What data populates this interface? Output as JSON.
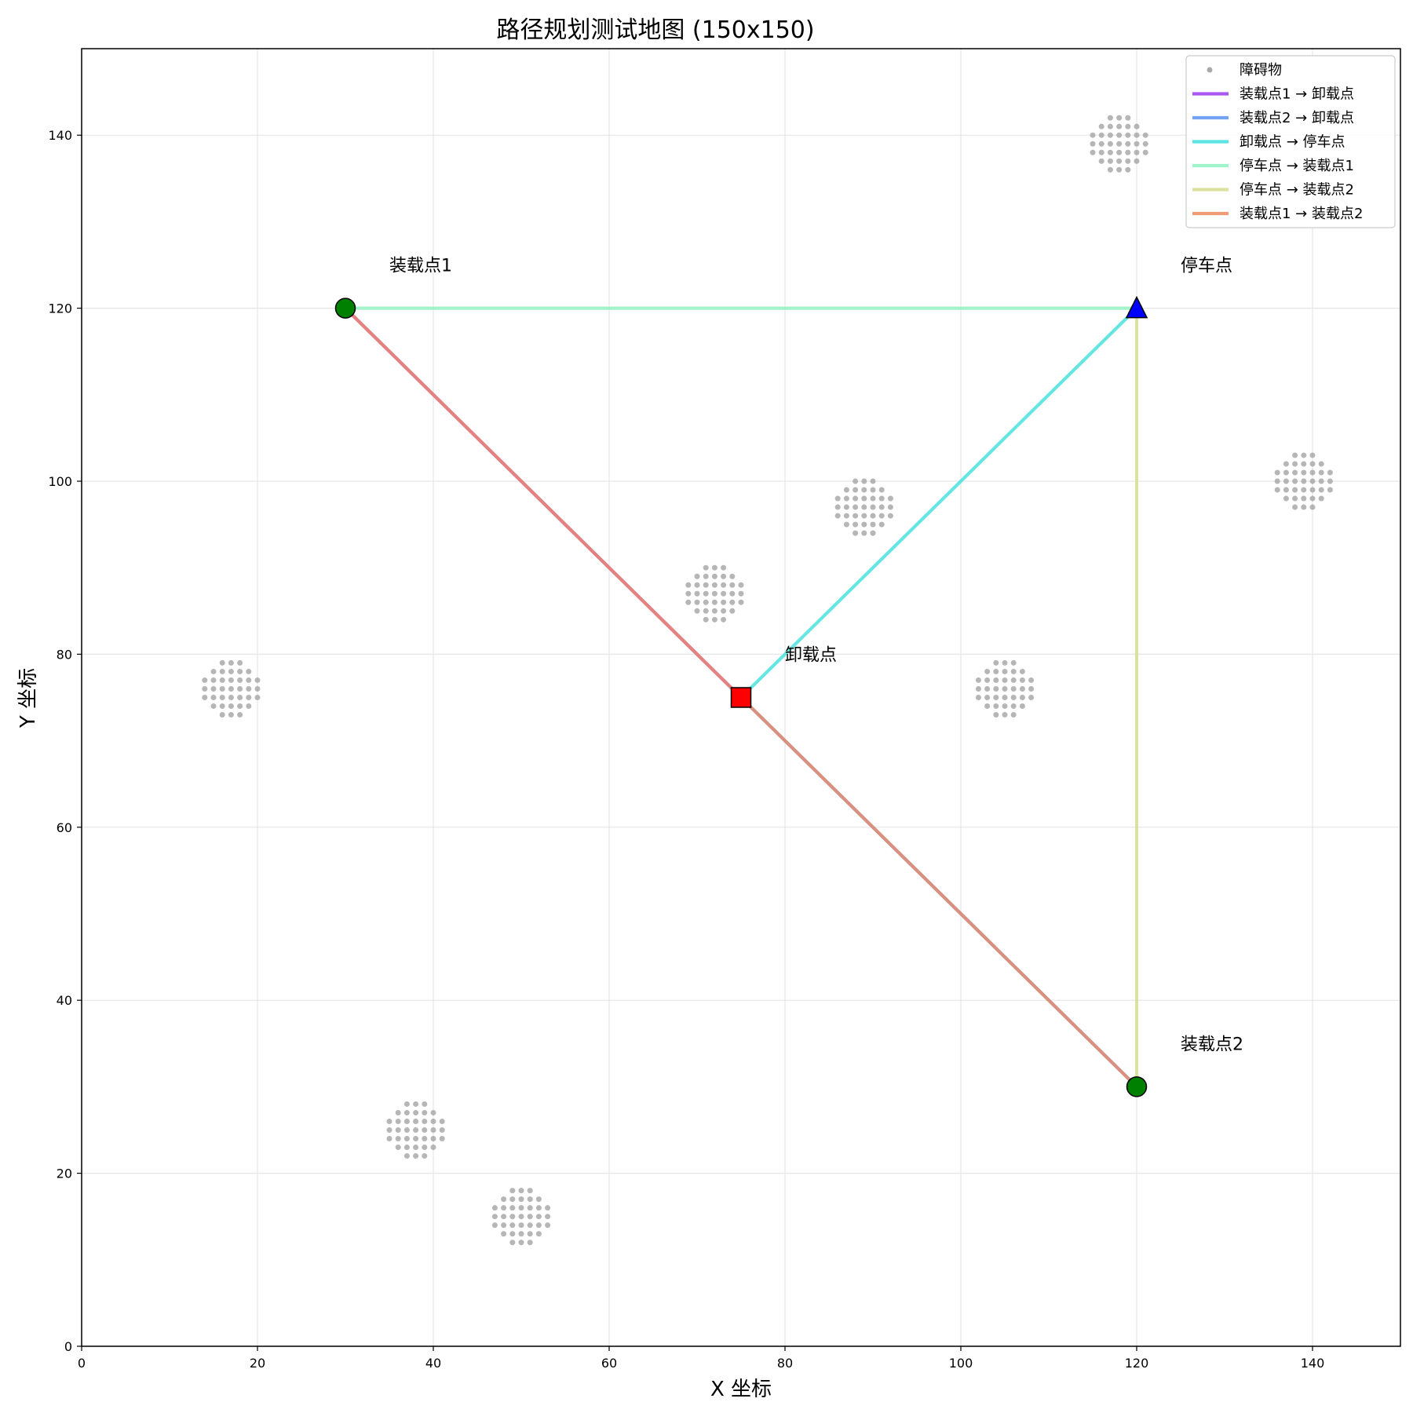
{
  "chart_data": {
    "type": "scatter",
    "title": "路径规划测试地图 (150x150)",
    "xlabel": "X 坐标",
    "ylabel": "Y 坐标",
    "xlim": [
      0,
      150
    ],
    "ylim": [
      0,
      150
    ],
    "xticks": [
      0,
      20,
      40,
      60,
      80,
      100,
      120,
      140
    ],
    "yticks": [
      0,
      20,
      40,
      60,
      80,
      100,
      120,
      140
    ],
    "grid": true,
    "legend_position": "top-right",
    "obstacles": {
      "name": "障碍物",
      "color": "#a9a9a9",
      "clusters": [
        [
          17,
          76
        ],
        [
          38,
          25
        ],
        [
          50,
          15
        ],
        [
          72,
          87
        ],
        [
          89,
          97
        ],
        [
          105,
          76
        ],
        [
          118,
          139
        ],
        [
          139,
          100
        ]
      ]
    },
    "points": [
      {
        "id": "load1",
        "label": "装载点1",
        "x": 30,
        "y": 120,
        "marker": "circle",
        "color": "#008000"
      },
      {
        "id": "load2",
        "label": "装载点2",
        "x": 120,
        "y": 30,
        "marker": "circle",
        "color": "#008000"
      },
      {
        "id": "unload",
        "label": "卸载点",
        "x": 75,
        "y": 75,
        "marker": "square",
        "color": "#ff0000"
      },
      {
        "id": "park",
        "label": "停车点",
        "x": 120,
        "y": 120,
        "marker": "triangle",
        "color": "#0000ff"
      }
    ],
    "paths": [
      {
        "name": "装载点1 → 卸载点",
        "color": "#9b3df0",
        "points": [
          [
            30,
            120
          ],
          [
            75,
            75
          ]
        ]
      },
      {
        "name": "装载点2 → 卸载点",
        "color": "#5b93f0",
        "points": [
          [
            120,
            30
          ],
          [
            75,
            75
          ]
        ]
      },
      {
        "name": "卸载点 → 停车点",
        "color": "#3fe0dc",
        "points": [
          [
            75,
            75
          ],
          [
            120,
            120
          ]
        ]
      },
      {
        "name": "停车点 → 装载点1",
        "color": "#8ff3c0",
        "points": [
          [
            120,
            120
          ],
          [
            30,
            120
          ]
        ]
      },
      {
        "name": "停车点 → 装载点2",
        "color": "#d6dc90",
        "points": [
          [
            120,
            120
          ],
          [
            120,
            30
          ]
        ]
      },
      {
        "name": "装载点1 → 装载点2",
        "color": "#f08a60",
        "points": [
          [
            30,
            120
          ],
          [
            120,
            30
          ]
        ]
      }
    ]
  }
}
